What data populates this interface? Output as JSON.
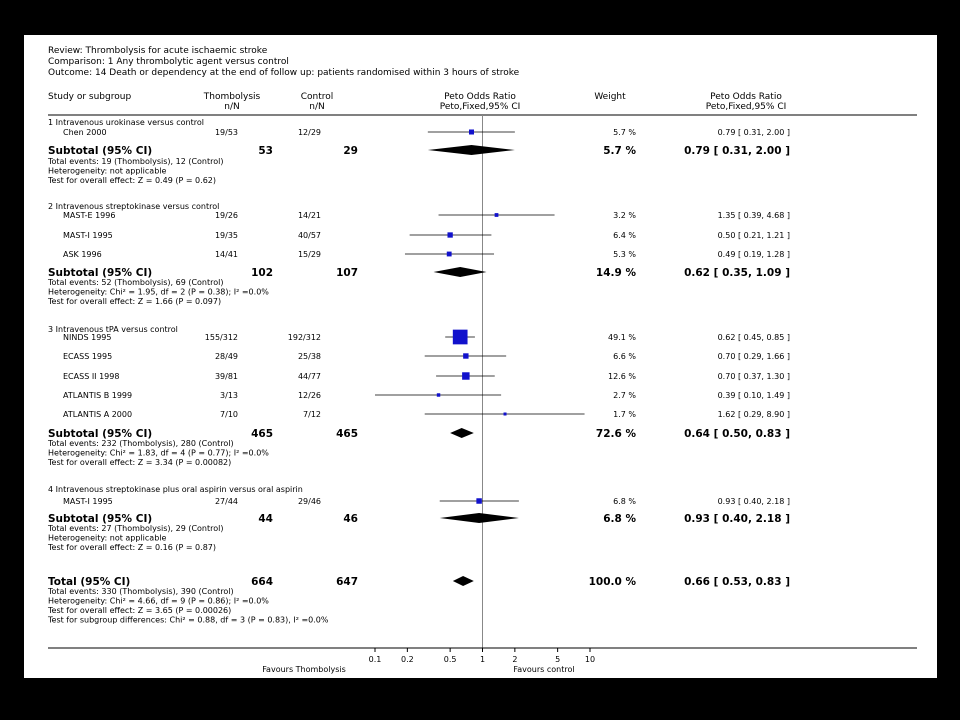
{
  "chart_data": {
    "type": "forest",
    "review": "Review: Thrombolysis for acute ischaemic stroke",
    "comparison": "Comparison: 1 Any thrombolytic agent versus control",
    "outcome": "Outcome: 14 Death or dependency at the end of follow up: patients randomised within 3 hours of stroke",
    "columns": {
      "study": "Study or subgroup",
      "treat": "Thombolysis",
      "treat_sub": "n/N",
      "control": "Control",
      "control_sub": "n/N",
      "or": "Peto Odds Ratio",
      "or_sub": "Peto,Fixed,95% CI",
      "weight": "Weight",
      "or2": "Peto Odds Ratio",
      "or2_sub": "Peto,Fixed,95% CI"
    },
    "groups": [
      {
        "title": "1 Intravenous urokinase versus control",
        "studies": [
          {
            "name": "Chen 2000",
            "treat": "19/53",
            "control": "12/29",
            "or": 0.79,
            "lo": 0.31,
            "hi": 2.0,
            "weight": "5.7 %",
            "ci_text": "0.79 [ 0.31, 2.00 ]"
          }
        ],
        "subtotal": {
          "label": "Subtotal (95% CI)",
          "treat": "53",
          "control": "29",
          "or": 0.79,
          "lo": 0.31,
          "hi": 2.0,
          "weight": "5.7 %",
          "ci_text": "0.79 [ 0.31, 2.00 ]"
        },
        "notes": [
          "Total events: 19 (Thombolysis), 12 (Control)",
          "Heterogeneity: not applicable",
          "Test for overall effect: Z = 0.49 (P = 0.62)"
        ]
      },
      {
        "title": "2 Intravenous streptokinase versus control",
        "studies": [
          {
            "name": "MAST-E 1996",
            "treat": "19/26",
            "control": "14/21",
            "or": 1.35,
            "lo": 0.39,
            "hi": 4.68,
            "weight": "3.2 %",
            "ci_text": "1.35 [ 0.39, 4.68 ]"
          },
          {
            "name": "MAST-I 1995",
            "treat": "19/35",
            "control": "40/57",
            "or": 0.5,
            "lo": 0.21,
            "hi": 1.21,
            "weight": "6.4 %",
            "ci_text": "0.50 [ 0.21, 1.21 ]"
          },
          {
            "name": "ASK 1996",
            "treat": "14/41",
            "control": "15/29",
            "or": 0.49,
            "lo": 0.19,
            "hi": 1.28,
            "weight": "5.3 %",
            "ci_text": "0.49 [ 0.19, 1.28 ]"
          }
        ],
        "subtotal": {
          "label": "Subtotal (95% CI)",
          "treat": "102",
          "control": "107",
          "or": 0.62,
          "lo": 0.35,
          "hi": 1.09,
          "weight": "14.9 %",
          "ci_text": "0.62 [ 0.35, 1.09 ]"
        },
        "notes": [
          "Total events: 52 (Thombolysis), 69 (Control)",
          "Heterogeneity: Chi² = 1.95, df = 2 (P = 0.38); I² =0.0%",
          "Test for overall effect: Z = 1.66 (P = 0.097)"
        ]
      },
      {
        "title": "3 Intravenous tPA versus control",
        "studies": [
          {
            "name": "NINDS 1995",
            "treat": "155/312",
            "control": "192/312",
            "or": 0.62,
            "lo": 0.45,
            "hi": 0.85,
            "weight": "49.1 %",
            "ci_text": "0.62 [ 0.45, 0.85 ]"
          },
          {
            "name": "ECASS 1995",
            "treat": "28/49",
            "control": "25/38",
            "or": 0.7,
            "lo": 0.29,
            "hi": 1.66,
            "weight": "6.6 %",
            "ci_text": "0.70 [ 0.29, 1.66 ]"
          },
          {
            "name": "ECASS II 1998",
            "treat": "39/81",
            "control": "44/77",
            "or": 0.7,
            "lo": 0.37,
            "hi": 1.3,
            "weight": "12.6 %",
            "ci_text": "0.70 [ 0.37, 1.30 ]"
          },
          {
            "name": "ATLANTIS B 1999",
            "treat": "3/13",
            "control": "12/26",
            "or": 0.39,
            "lo": 0.1,
            "hi": 1.49,
            "weight": "2.7 %",
            "ci_text": "0.39 [ 0.10, 1.49 ]"
          },
          {
            "name": "ATLANTIS A 2000",
            "treat": "7/10",
            "control": "7/12",
            "or": 1.62,
            "lo": 0.29,
            "hi": 8.9,
            "weight": "1.7 %",
            "ci_text": "1.62 [ 0.29, 8.90 ]"
          }
        ],
        "subtotal": {
          "label": "Subtotal (95% CI)",
          "treat": "465",
          "control": "465",
          "or": 0.64,
          "lo": 0.5,
          "hi": 0.83,
          "weight": "72.6 %",
          "ci_text": "0.64 [ 0.50, 0.83 ]"
        },
        "notes": [
          "Total events: 232 (Thombolysis), 280 (Control)",
          "Heterogeneity: Chi² = 1.83, df = 4 (P = 0.77); I² =0.0%",
          "Test for overall effect: Z = 3.34 (P = 0.00082)"
        ]
      },
      {
        "title": "4 Intravenous streptokinase plus oral aspirin versus oral aspirin",
        "studies": [
          {
            "name": "MAST-I 1995",
            "treat": "27/44",
            "control": "29/46",
            "or": 0.93,
            "lo": 0.4,
            "hi": 2.18,
            "weight": "6.8 %",
            "ci_text": "0.93 [ 0.40, 2.18 ]"
          }
        ],
        "subtotal": {
          "label": "Subtotal (95% CI)",
          "treat": "44",
          "control": "46",
          "or": 0.93,
          "lo": 0.4,
          "hi": 2.18,
          "weight": "6.8 %",
          "ci_text": "0.93 [ 0.40, 2.18 ]"
        },
        "notes": [
          "Total events: 27 (Thombolysis), 29 (Control)",
          "Heterogeneity: not applicable",
          "Test for overall effect: Z = 0.16 (P = 0.87)"
        ]
      }
    ],
    "total": {
      "label": "Total (95% CI)",
      "treat": "664",
      "control": "647",
      "or": 0.66,
      "lo": 0.53,
      "hi": 0.83,
      "weight": "100.0 %",
      "ci_text": "0.66 [ 0.53, 0.83 ]",
      "notes": [
        "Total events: 330 (Thombolysis), 390 (Control)",
        "Heterogeneity: Chi² = 4.66, df = 9 (P = 0.86); I² =0.0%",
        "Test for overall effect: Z = 3.65 (P = 0.00026)",
        "Test for subgroup differences: Chi² = 0.88, df = 3 (P = 0.83), I² =0.0%"
      ]
    },
    "x_axis": {
      "scale": "log",
      "ticks": [
        0.1,
        0.2,
        0.5,
        1,
        2,
        5,
        10
      ],
      "tick_labels": [
        "0.1",
        "0.2",
        "0.5",
        "1",
        "2",
        "5",
        "10"
      ],
      "left_label": "Favours Thombolysis",
      "right_label": "Favours control",
      "range": [
        0.1,
        10
      ]
    },
    "colors": {
      "study_marker": "#1111cc",
      "diamond": "#000000"
    }
  }
}
